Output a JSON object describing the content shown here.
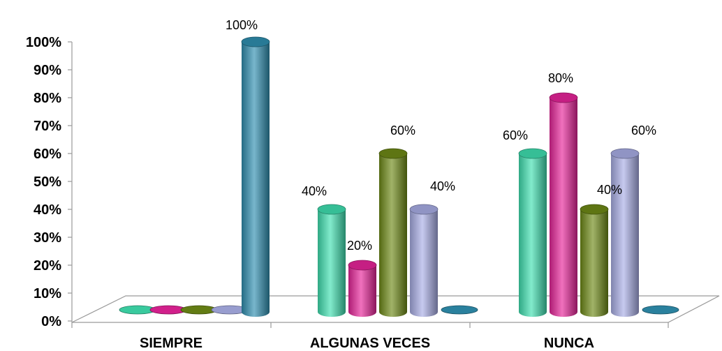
{
  "chart_data": {
    "type": "bar",
    "categories": [
      "SIEMPRE",
      "ALGUNAS VECES",
      "NUNCA"
    ],
    "series": [
      {
        "color": "#3fe0b0",
        "values": [
          0,
          40,
          60
        ]
      },
      {
        "color": "#e8249a",
        "values": [
          0,
          20,
          80
        ]
      },
      {
        "color": "#6e8a16",
        "values": [
          0,
          60,
          40
        ]
      },
      {
        "color": "#a9aee6",
        "values": [
          0,
          40,
          60
        ]
      },
      {
        "color": "#2f8fb0",
        "values": [
          100,
          0,
          0
        ]
      }
    ],
    "data_labels": [
      {
        "category": 0,
        "series": 4,
        "text": "100%"
      },
      {
        "category": 1,
        "series": 0,
        "text": "40%"
      },
      {
        "category": 1,
        "series": 1,
        "text": "20%"
      },
      {
        "category": 1,
        "series": 2,
        "text": "60%"
      },
      {
        "category": 1,
        "series": 3,
        "text": "40%"
      },
      {
        "category": 2,
        "series": 0,
        "text": "60%"
      },
      {
        "category": 2,
        "series": 1,
        "text": "80%"
      },
      {
        "category": 2,
        "series": 2,
        "text": "40%"
      },
      {
        "category": 2,
        "series": 3,
        "text": "60%"
      }
    ],
    "y_ticks": [
      "0%",
      "10%",
      "20%",
      "30%",
      "40%",
      "50%",
      "60%",
      "70%",
      "80%",
      "90%",
      "100%"
    ],
    "ylim": [
      0,
      100
    ],
    "grid": false,
    "legend": "none"
  }
}
